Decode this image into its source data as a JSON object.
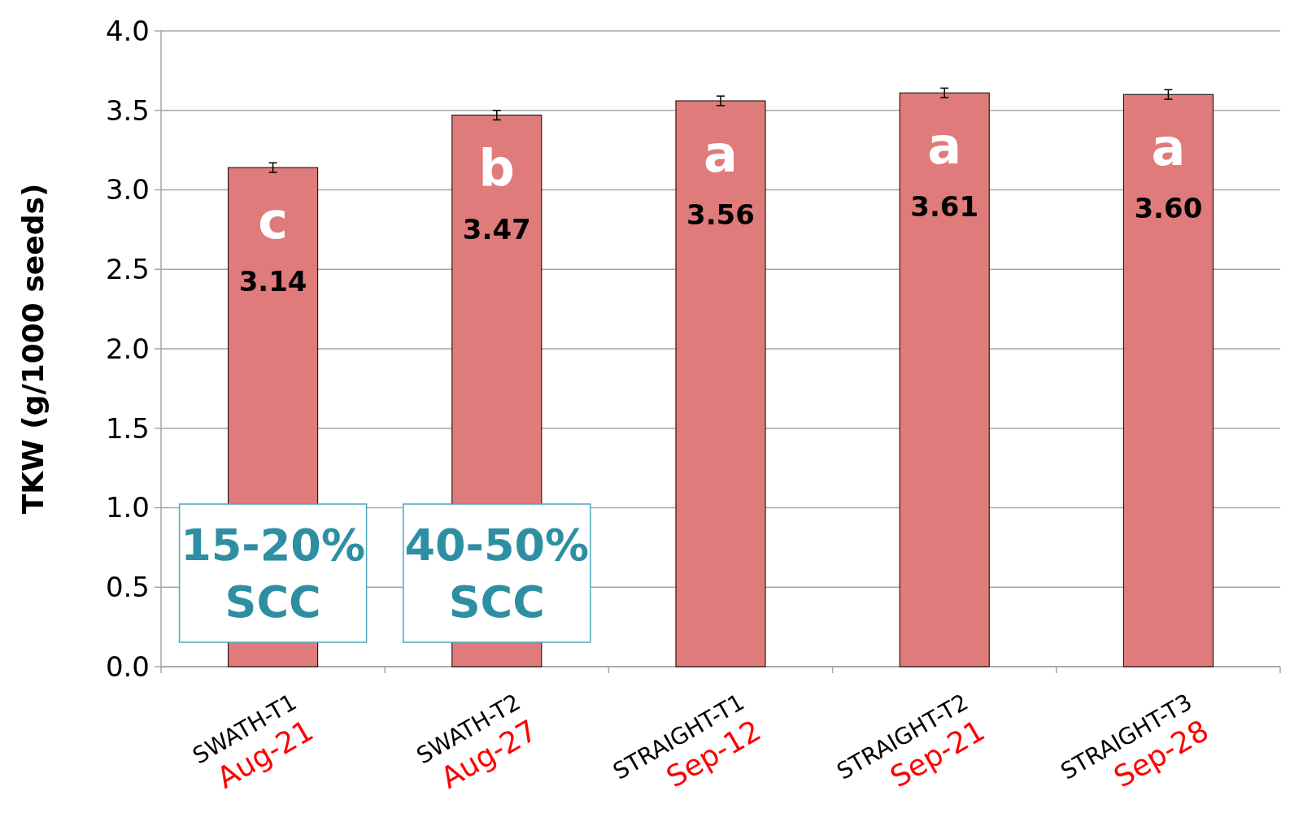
{
  "chart_data": {
    "type": "bar",
    "ylabel": "TKW (g/1000 seeds)",
    "categories": [
      "SWATH-T1 Aug-21",
      "SWATH-T2 Aug-27",
      "STRAIGHT-T1 Sep-12",
      "STRAIGHT-T2 Sep-21",
      "STRAIGHT-T3 Sep-28"
    ],
    "values": [
      3.14,
      3.47,
      3.56,
      3.61,
      3.6
    ],
    "value_labels": [
      "3.14",
      "3.47",
      "3.56",
      "3.61",
      "3.60"
    ],
    "errors": [
      0.03,
      0.03,
      0.03,
      0.03,
      0.03
    ],
    "color": "#e07b7b",
    "ylim": [
      0,
      4
    ],
    "yticks": [
      {
        "value": 0,
        "label": "0.0"
      },
      {
        "value": 0.5,
        "label": "0.5"
      },
      {
        "value": 1,
        "label": "1.0"
      },
      {
        "value": 1.5,
        "label": "1.5"
      },
      {
        "value": 2,
        "label": "2.0"
      },
      {
        "value": 2.5,
        "label": "2.5"
      },
      {
        "value": 3,
        "label": "3.0"
      },
      {
        "value": 3.5,
        "label": "3.5"
      },
      {
        "value": 4,
        "label": "4.0"
      }
    ],
    "grid": "y",
    "annotations": [
      "c",
      "b",
      "a",
      "a",
      "a",
      "15-20% SCC",
      "40-50% SCC"
    ]
  }
}
